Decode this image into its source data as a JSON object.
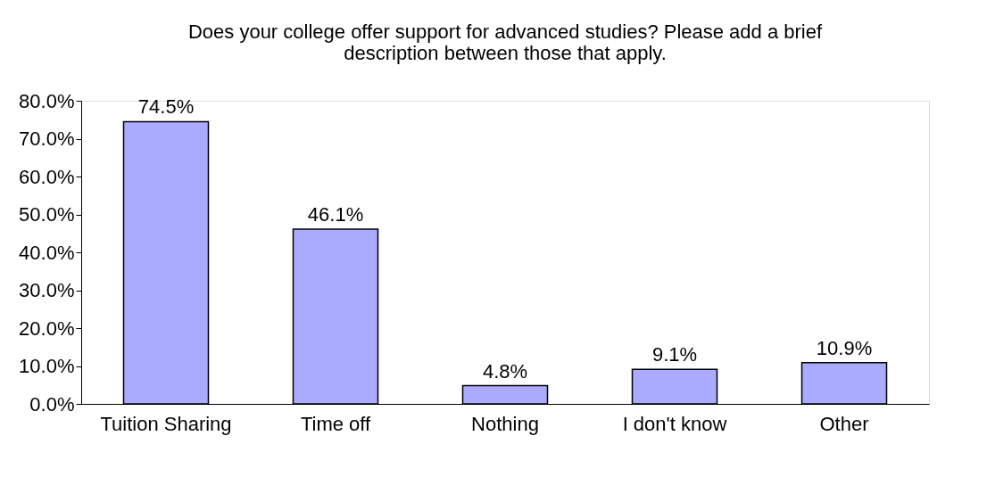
{
  "chart_data": {
    "type": "bar",
    "title": [
      "Does your college offer support for advanced studies? Please add a brief",
      "description between those that apply."
    ],
    "categories": [
      "Tuition Sharing",
      "Time off",
      "Nothing",
      "I don't know",
      "Other"
    ],
    "values": [
      74.5,
      46.1,
      4.8,
      9.1,
      10.9
    ],
    "value_labels": [
      "74.5%",
      "46.1%",
      "4.8%",
      "9.1%",
      "10.9%"
    ],
    "color": "#aaaaff",
    "ylim": [
      0,
      80
    ],
    "yticks": [
      {
        "value": 0,
        "label": "0.0%"
      },
      {
        "value": 10,
        "label": "10.0%"
      },
      {
        "value": 20,
        "label": "20.0%"
      },
      {
        "value": 30,
        "label": "30.0%"
      },
      {
        "value": 40,
        "label": "40.0%"
      },
      {
        "value": 50,
        "label": "50.0%"
      },
      {
        "value": 60,
        "label": "60.0%"
      },
      {
        "value": 70,
        "label": "70.0%"
      },
      {
        "value": 80,
        "label": "80.0%"
      }
    ],
    "grid": false
  }
}
